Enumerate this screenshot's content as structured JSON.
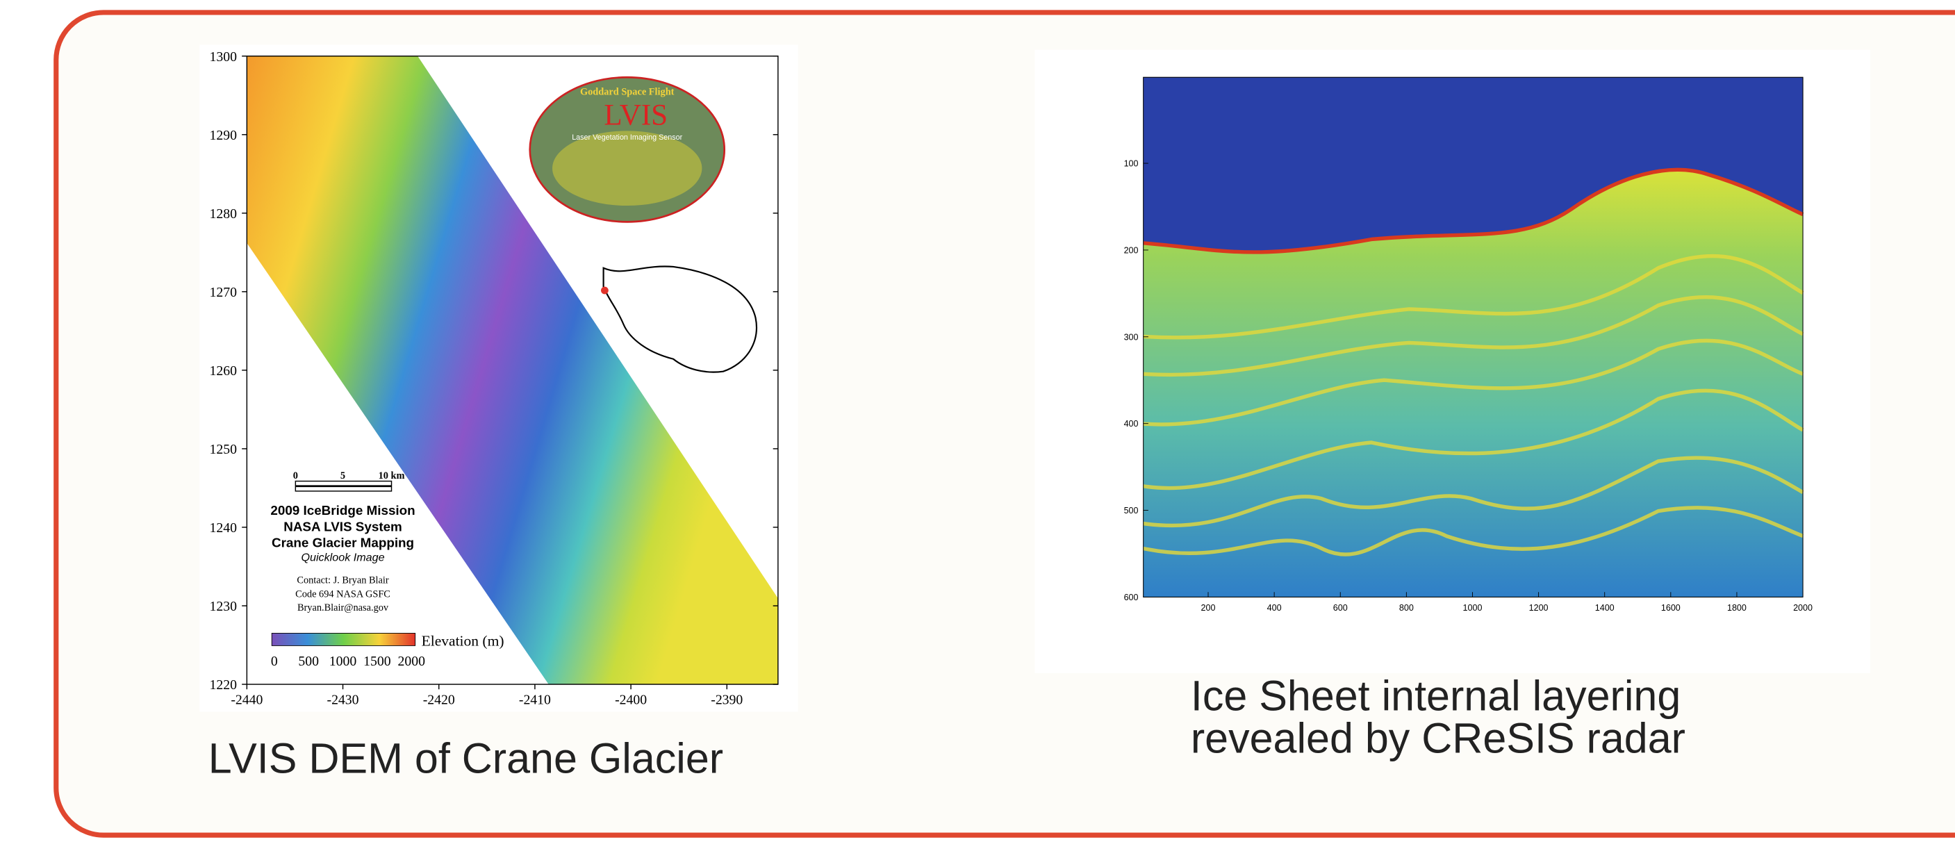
{
  "left_figure": {
    "y_ticks": [
      1300,
      1290,
      1280,
      1270,
      1260,
      1250,
      1240,
      1230,
      1220
    ],
    "x_ticks": [
      -2440,
      -2430,
      -2420,
      -2410,
      -2400,
      -2390
    ],
    "logo": {
      "arc_text": "Goddard Space Flight",
      "title": "LVIS",
      "subtitle": "Laser Vegetation Imaging Sensor"
    },
    "scale_bar": [
      "0",
      "5",
      "10 km"
    ],
    "mission_lines": [
      "2009 IceBridge Mission",
      "NASA LVIS System",
      "Crane Glacier Mapping"
    ],
    "quicklook": "Quicklook Image",
    "contact": [
      "Contact: J. Bryan Blair",
      "Code 694 NASA GSFC",
      "Bryan.Blair@nasa.gov"
    ],
    "colorbar_ticks": [
      0,
      500,
      1000,
      1500,
      2000
    ],
    "colorbar_label": "Elevation (m)",
    "caption": "LVIS DEM of Crane Glacier"
  },
  "right_figure": {
    "y_ticks": [
      100,
      200,
      300,
      400,
      500,
      600
    ],
    "x_ticks": [
      200,
      400,
      600,
      800,
      1000,
      1200,
      1400,
      1600,
      1800,
      2000
    ],
    "caption": [
      "Ice Sheet internal layering",
      "revealed by CReSIS radar"
    ]
  }
}
